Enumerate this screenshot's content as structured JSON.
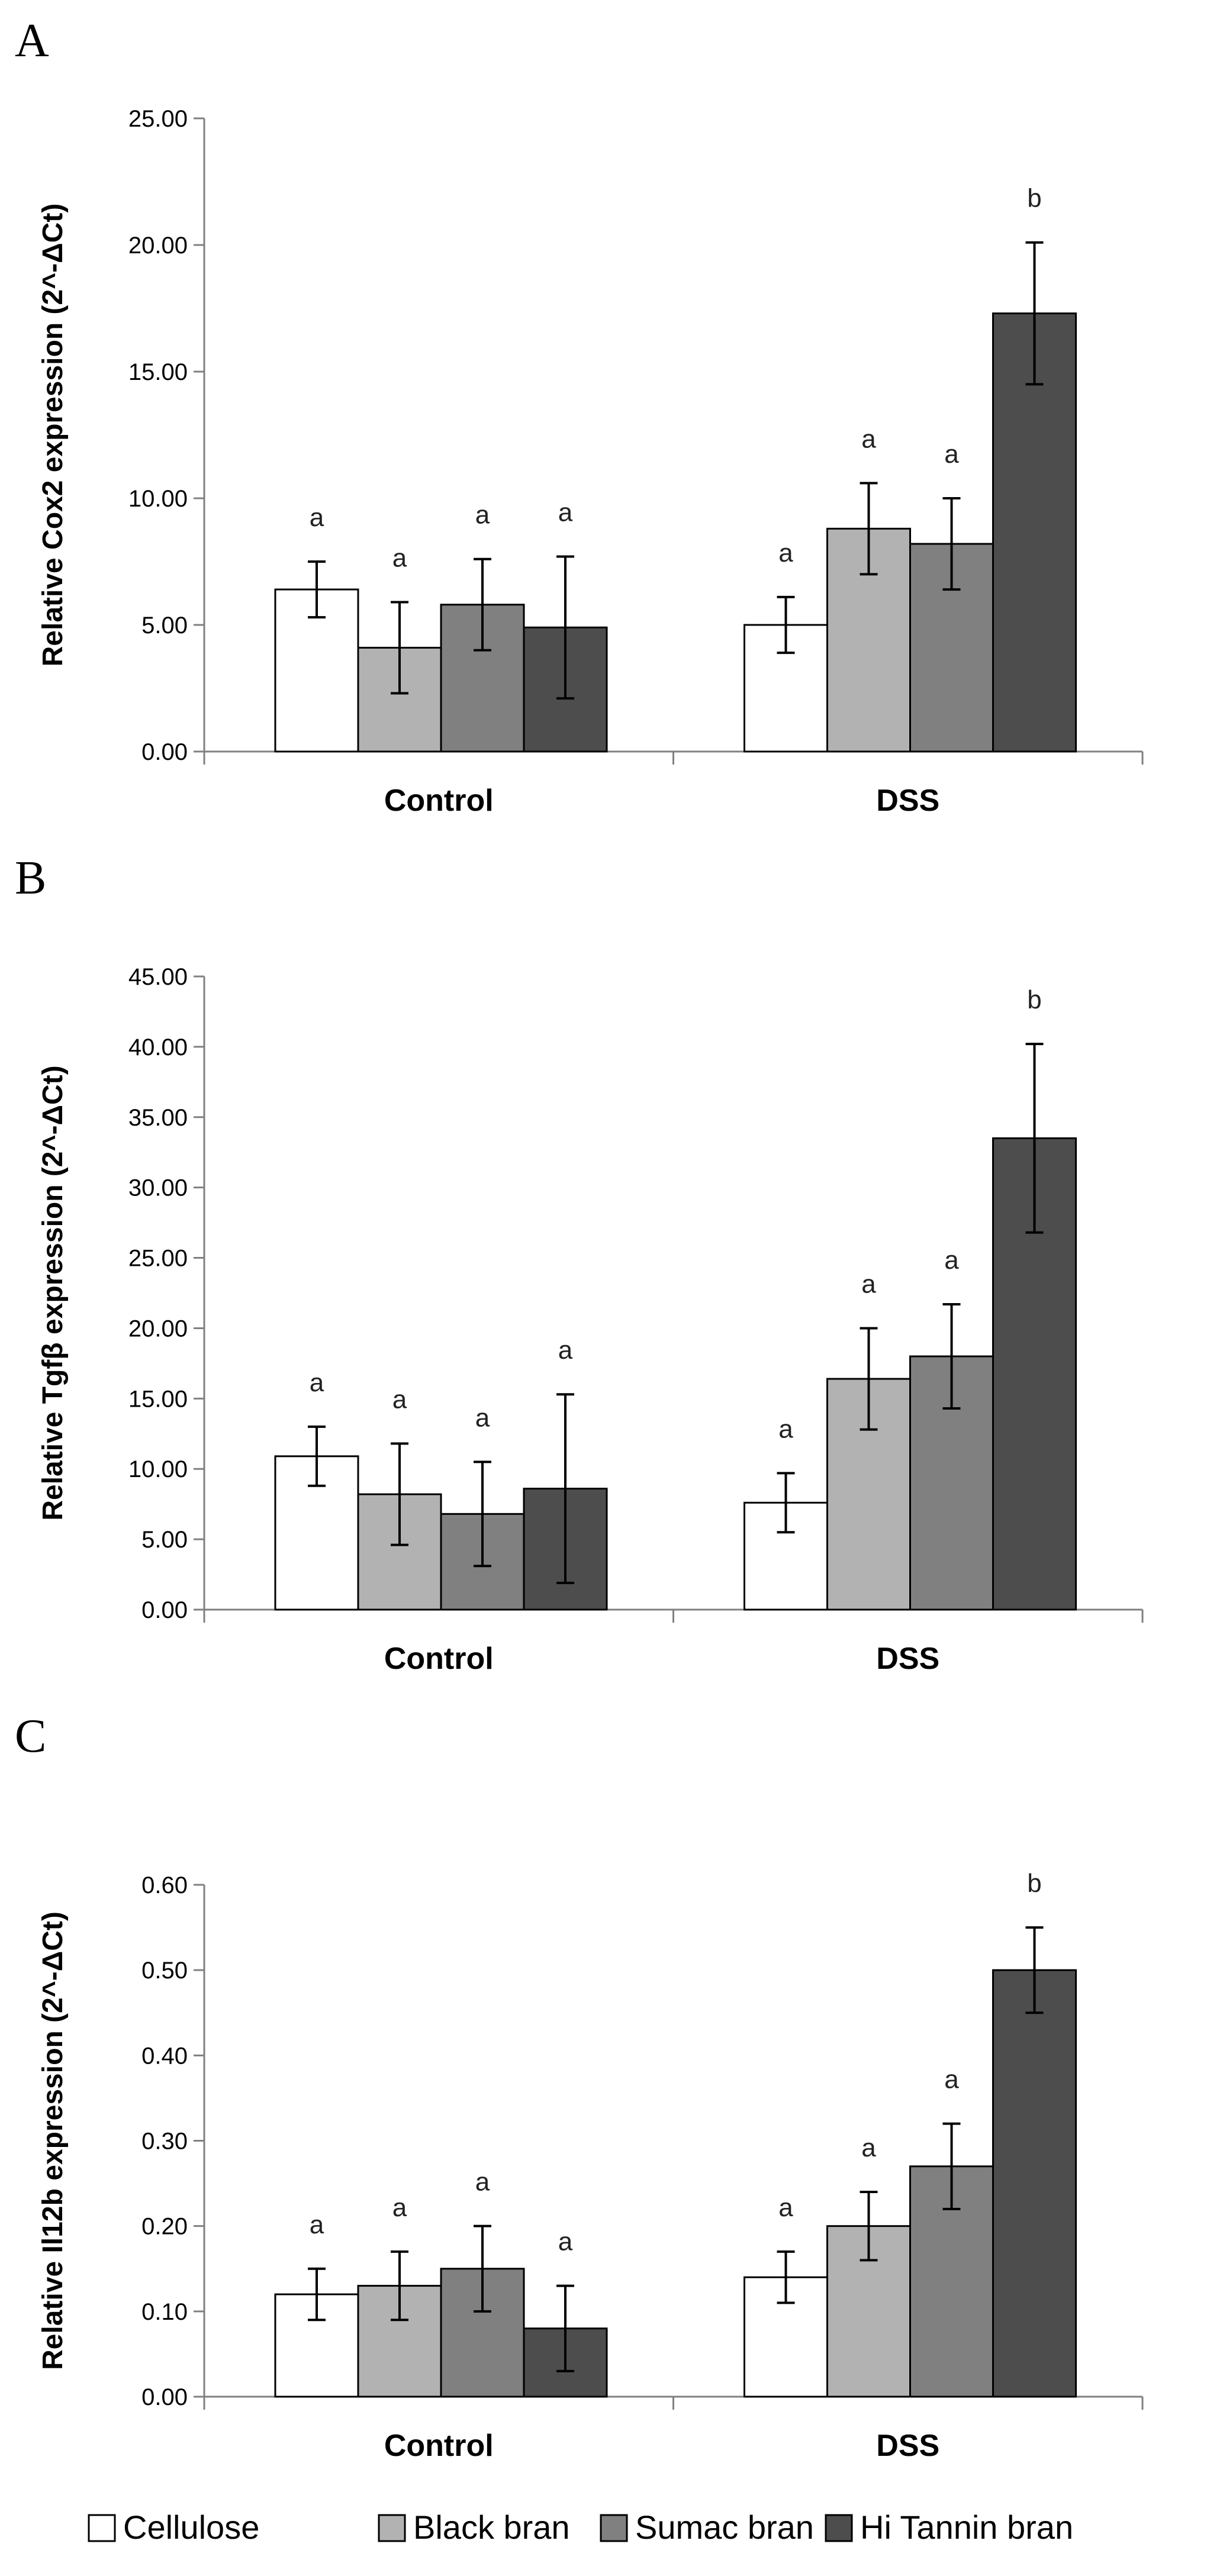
{
  "chart_data": [
    {
      "type": "bar",
      "panel": "A",
      "categories": [
        "Control",
        "DSS"
      ],
      "ylabel": "Relative Cox2 expression (2^-ΔCt)",
      "ylim": [
        0,
        25
      ],
      "yticks": [
        "0.00",
        "5.00",
        "10.00",
        "15.00",
        "20.00",
        "25.00"
      ],
      "series": [
        {
          "name": "Cellulose",
          "values": [
            6.4,
            5.0
          ],
          "errors": [
            1.1,
            1.1
          ],
          "letters": [
            "a",
            "a"
          ]
        },
        {
          "name": "Black bran",
          "values": [
            4.1,
            8.8
          ],
          "errors": [
            1.8,
            1.8
          ],
          "letters": [
            "a",
            "a"
          ]
        },
        {
          "name": "Sumac bran",
          "values": [
            5.8,
            8.2
          ],
          "errors": [
            1.8,
            1.8
          ],
          "letters": [
            "a",
            "a"
          ]
        },
        {
          "name": "Hi Tannin bran",
          "values": [
            4.9,
            17.3
          ],
          "errors": [
            2.8,
            2.8
          ],
          "letters": [
            "a",
            "b"
          ]
        }
      ]
    },
    {
      "type": "bar",
      "panel": "B",
      "categories": [
        "Control",
        "DSS"
      ],
      "ylabel": "Relative Tgfβ expression (2^-ΔCt)",
      "ylim": [
        0,
        45
      ],
      "yticks": [
        "0.00",
        "5.00",
        "10.00",
        "15.00",
        "20.00",
        "25.00",
        "30.00",
        "35.00",
        "40.00",
        "45.00"
      ],
      "series": [
        {
          "name": "Cellulose",
          "values": [
            10.9,
            7.6
          ],
          "errors": [
            2.1,
            2.1
          ],
          "letters": [
            "a",
            "a"
          ]
        },
        {
          "name": "Black bran",
          "values": [
            8.2,
            16.4
          ],
          "errors": [
            3.6,
            3.6
          ],
          "letters": [
            "a",
            "a"
          ]
        },
        {
          "name": "Sumac bran",
          "values": [
            6.8,
            18.0
          ],
          "errors": [
            3.7,
            3.7
          ],
          "letters": [
            "a",
            "a"
          ]
        },
        {
          "name": "Hi Tannin bran",
          "values": [
            8.6,
            33.5
          ],
          "errors": [
            6.7,
            6.7
          ],
          "letters": [
            "a",
            "b"
          ]
        }
      ]
    },
    {
      "type": "bar",
      "panel": "C",
      "categories": [
        "Control",
        "DSS"
      ],
      "ylabel": "Relative Il12b expression (2^-ΔCt)",
      "ylim": [
        0,
        0.6
      ],
      "yticks": [
        "0.00",
        "0.10",
        "0.20",
        "0.30",
        "0.40",
        "0.50",
        "0.60"
      ],
      "series": [
        {
          "name": "Cellulose",
          "values": [
            0.12,
            0.14
          ],
          "errors": [
            0.03,
            0.03
          ],
          "letters": [
            "a",
            "a"
          ]
        },
        {
          "name": "Black bran",
          "values": [
            0.13,
            0.2
          ],
          "errors": [
            0.04,
            0.04
          ],
          "letters": [
            "a",
            "a"
          ]
        },
        {
          "name": "Sumac bran",
          "values": [
            0.15,
            0.27
          ],
          "errors": [
            0.05,
            0.05
          ],
          "letters": [
            "a",
            "a"
          ]
        },
        {
          "name": "Hi Tannin bran",
          "values": [
            0.08,
            0.5
          ],
          "errors": [
            0.05,
            0.05
          ],
          "letters": [
            "a",
            "b"
          ]
        }
      ]
    }
  ],
  "legend": {
    "placement": "bottom",
    "items": [
      {
        "label": "Cellulose",
        "color": "#ffffff"
      },
      {
        "label": "Black bran",
        "color": "#b2b2b2"
      },
      {
        "label": "Sumac bran",
        "color": "#808080"
      },
      {
        "label": "Hi Tannin bran",
        "color": "#4d4d4d"
      }
    ]
  },
  "colors": {
    "cellulose": "#ffffff",
    "black_bran": "#b2b2b2",
    "sumac_bran": "#808080",
    "hi_tannin_bran": "#4d4d4d",
    "axis": "#808080"
  }
}
